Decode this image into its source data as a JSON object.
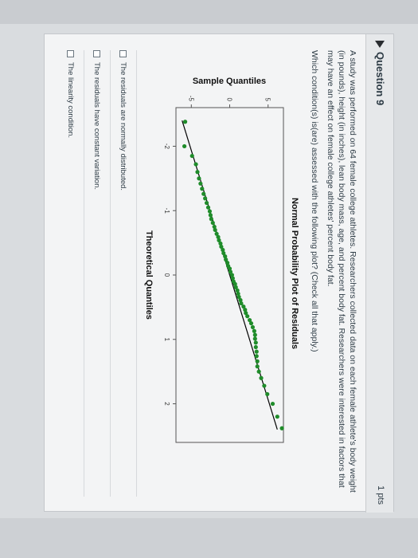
{
  "question": {
    "title": "Question 9",
    "points": "1 pts",
    "text": "A study was performed on 64 female college athletes. Researchers collected data on each female athlete's body weight (in pounds), height (in inches), lean body mass, age, and percent body fat. Researchers were interested in factors that may have an effect on female college athletes' percent body fat.",
    "prompt": "Which condition(s) is(are) assessed with the following plot? (Check all that apply.)"
  },
  "plot": {
    "title": "Normal Probability Plot of Residuals",
    "ylabel": "Sample Quantiles",
    "xlabel": "Theoretical Quantiles",
    "yticks": [
      "-5",
      "0",
      "5"
    ],
    "xticks": [
      "-2",
      "-1",
      "0",
      "1",
      "2"
    ]
  },
  "chart_data": {
    "type": "scatter",
    "title": "Normal Probability Plot of Residuals",
    "xlabel": "Theoretical Quantiles",
    "ylabel": "Sample Quantiles",
    "xlim": [
      -2.6,
      2.6
    ],
    "ylim": [
      -7,
      7
    ],
    "reference_line": {
      "x": [
        -2.4,
        2.4
      ],
      "y": [
        -6.2,
        6.2
      ]
    },
    "points": {
      "x": [
        -2.38,
        -2.0,
        -1.85,
        -1.72,
        -1.6,
        -1.5,
        -1.42,
        -1.34,
        -1.26,
        -1.19,
        -1.12,
        -1.05,
        -0.99,
        -0.93,
        -0.87,
        -0.81,
        -0.75,
        -0.7,
        -0.64,
        -0.59,
        -0.54,
        -0.49,
        -0.44,
        -0.39,
        -0.34,
        -0.29,
        -0.24,
        -0.19,
        -0.14,
        -0.1,
        -0.05,
        0.0,
        0.05,
        0.1,
        0.14,
        0.19,
        0.24,
        0.29,
        0.34,
        0.39,
        0.44,
        0.49,
        0.54,
        0.59,
        0.64,
        0.7,
        0.75,
        0.81,
        0.87,
        0.93,
        0.99,
        1.05,
        1.12,
        1.19,
        1.26,
        1.34,
        1.42,
        1.5,
        1.6,
        1.72,
        1.85,
        2.0,
        2.2,
        2.38
      ],
      "y": [
        -5.8,
        -5.9,
        -4.9,
        -4.4,
        -4.2,
        -4.0,
        -3.8,
        -3.6,
        -3.4,
        -3.2,
        -3.0,
        -2.8,
        -2.6,
        -2.5,
        -2.4,
        -2.2,
        -2.0,
        -1.9,
        -1.7,
        -1.5,
        -1.4,
        -1.2,
        -1.1,
        -0.9,
        -0.8,
        -0.6,
        -0.5,
        -0.3,
        -0.2,
        0.0,
        0.1,
        0.3,
        0.4,
        0.5,
        0.7,
        0.8,
        1.0,
        1.1,
        1.2,
        1.4,
        1.5,
        1.8,
        2.0,
        2.1,
        2.3,
        2.6,
        2.8,
        3.0,
        3.2,
        3.3,
        3.3,
        3.4,
        3.4,
        3.5,
        3.5,
        3.6,
        3.6,
        3.8,
        4.1,
        4.5,
        4.9,
        5.6,
        6.2,
        6.8
      ]
    }
  },
  "answers": [
    {
      "label": "The residuals are normally distributed."
    },
    {
      "label": "The residuals have constant variation."
    },
    {
      "label": "The linearity condition."
    }
  ],
  "colors": {
    "point": "#1f8c2a",
    "line": "#000000",
    "text": "#2d3b45"
  }
}
